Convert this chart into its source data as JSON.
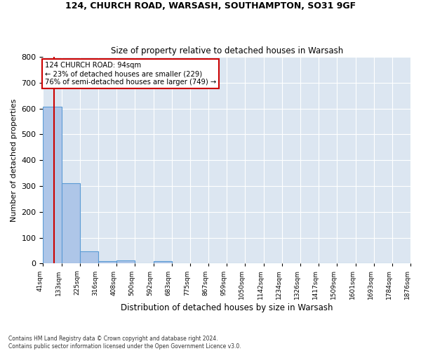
{
  "title1": "124, CHURCH ROAD, WARSASH, SOUTHAMPTON, SO31 9GF",
  "title2": "Size of property relative to detached houses in Warsash",
  "xlabel": "Distribution of detached houses by size in Warsash",
  "ylabel": "Number of detached properties",
  "footnote": "Contains HM Land Registry data © Crown copyright and database right 2024.\nContains public sector information licensed under the Open Government Licence v3.0.",
  "bin_edges": [
    41,
    133,
    225,
    316,
    408,
    500,
    592,
    683,
    775,
    867,
    959,
    1050,
    1142,
    1234,
    1326,
    1417,
    1509,
    1601,
    1693,
    1784,
    1876
  ],
  "bar_heights": [
    608,
    310,
    48,
    10,
    13,
    0,
    8,
    0,
    0,
    0,
    0,
    0,
    0,
    0,
    0,
    0,
    0,
    0,
    0,
    0
  ],
  "bar_color": "#aec6e8",
  "bar_edge_color": "#5b9bd5",
  "property_size": 94,
  "vline_color": "#cc0000",
  "annotation_text": "124 CHURCH ROAD: 94sqm\n← 23% of detached houses are smaller (229)\n76% of semi-detached houses are larger (749) →",
  "annotation_box_color": "#ffffff",
  "annotation_box_edge_color": "#cc0000",
  "ylim": [
    0,
    800
  ],
  "yticks": [
    0,
    100,
    200,
    300,
    400,
    500,
    600,
    700,
    800
  ],
  "background_color": "#dce6f1",
  "fig_background_color": "#ffffff",
  "grid_color": "#ffffff",
  "tick_label_rotation": 90
}
